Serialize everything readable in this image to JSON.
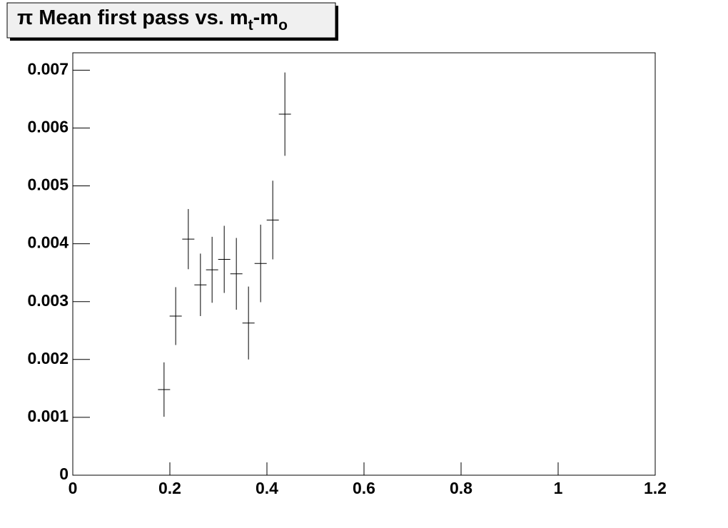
{
  "chart_data": {
    "type": "scatter",
    "title": [
      "π Mean first pass vs. m",
      "t",
      "-m",
      "o"
    ],
    "x": [
      0.188,
      0.212,
      0.238,
      0.263,
      0.287,
      0.312,
      0.337,
      0.362,
      0.387,
      0.412,
      0.437
    ],
    "x_errors": [
      0.0125,
      0.0125,
      0.0125,
      0.0125,
      0.0125,
      0.0125,
      0.0125,
      0.0125,
      0.0125,
      0.0125,
      0.0125
    ],
    "values": [
      0.00148,
      0.00275,
      0.00408,
      0.00329,
      0.00355,
      0.00373,
      0.00348,
      0.00263,
      0.00366,
      0.00441,
      0.00624
    ],
    "errors": [
      0.00047,
      0.0005,
      0.00052,
      0.00054,
      0.00057,
      0.00058,
      0.00062,
      0.00063,
      0.00067,
      0.00068,
      0.00072
    ],
    "color": "#000000",
    "xlim": [
      0,
      1.2
    ],
    "xticks": [
      0,
      0.2,
      0.4,
      0.6,
      0.8,
      1,
      1.2
    ],
    "ylim": [
      0,
      0.0073
    ],
    "yticks": [
      0,
      0.001,
      0.002,
      0.003,
      0.004,
      0.005,
      0.006,
      0.007
    ]
  }
}
